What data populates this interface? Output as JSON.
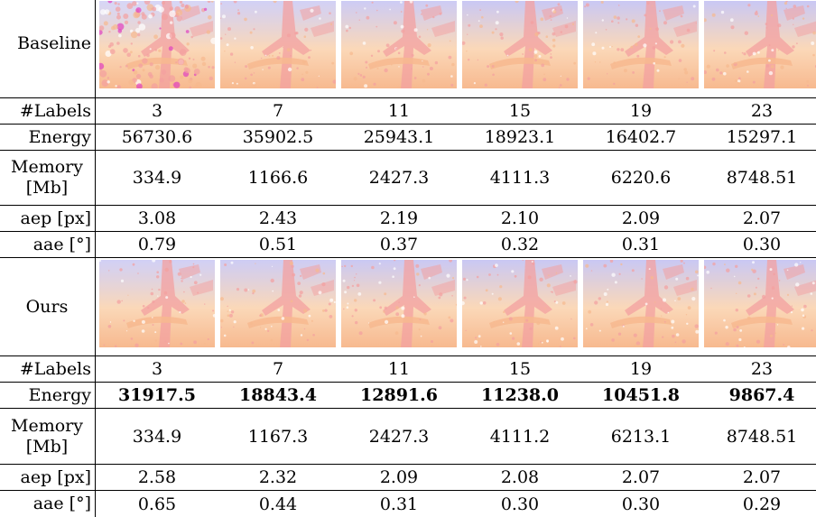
{
  "labels": {
    "baseline": "Baseline",
    "ours": "Ours",
    "num_labels": "#Labels",
    "energy": "Energy",
    "memory": "Memory [Mb]",
    "aep": "aep [px]",
    "aae": "aae [°]"
  },
  "baseline": {
    "num_labels": [
      "3",
      "7",
      "11",
      "15",
      "19",
      "23"
    ],
    "energy": [
      "56730.6",
      "35902.5",
      "25943.1",
      "18923.1",
      "16402.7",
      "15297.1"
    ],
    "memory": [
      "334.9",
      "1166.6",
      "2427.3",
      "4111.3",
      "6220.6",
      "8748.51"
    ],
    "aep": [
      "3.08",
      "2.43",
      "2.19",
      "2.10",
      "2.09",
      "2.07"
    ],
    "aae": [
      "0.79",
      "0.51",
      "0.37",
      "0.32",
      "0.31",
      "0.30"
    ]
  },
  "ours": {
    "num_labels": [
      "3",
      "7",
      "11",
      "15",
      "19",
      "23"
    ],
    "energy": [
      "31917.5",
      "18843.4",
      "12891.6",
      "11238.0",
      "10451.8",
      "9867.4"
    ],
    "memory": [
      "334.9",
      "1167.3",
      "2427.3",
      "4111.2",
      "6213.1",
      "8748.51"
    ],
    "aep": [
      "2.58",
      "2.32",
      "2.09",
      "2.08",
      "2.07",
      "2.07"
    ],
    "aae": [
      "0.65",
      "0.44",
      "0.31",
      "0.30",
      "0.30",
      "0.29"
    ]
  },
  "colors": {
    "flow_blue": "#c9c8f4",
    "flow_orange": "#f7b98f",
    "flow_peach": "#fbd8b8",
    "flow_pink": "#f3a0a0",
    "flow_magenta": "#e040c0"
  }
}
